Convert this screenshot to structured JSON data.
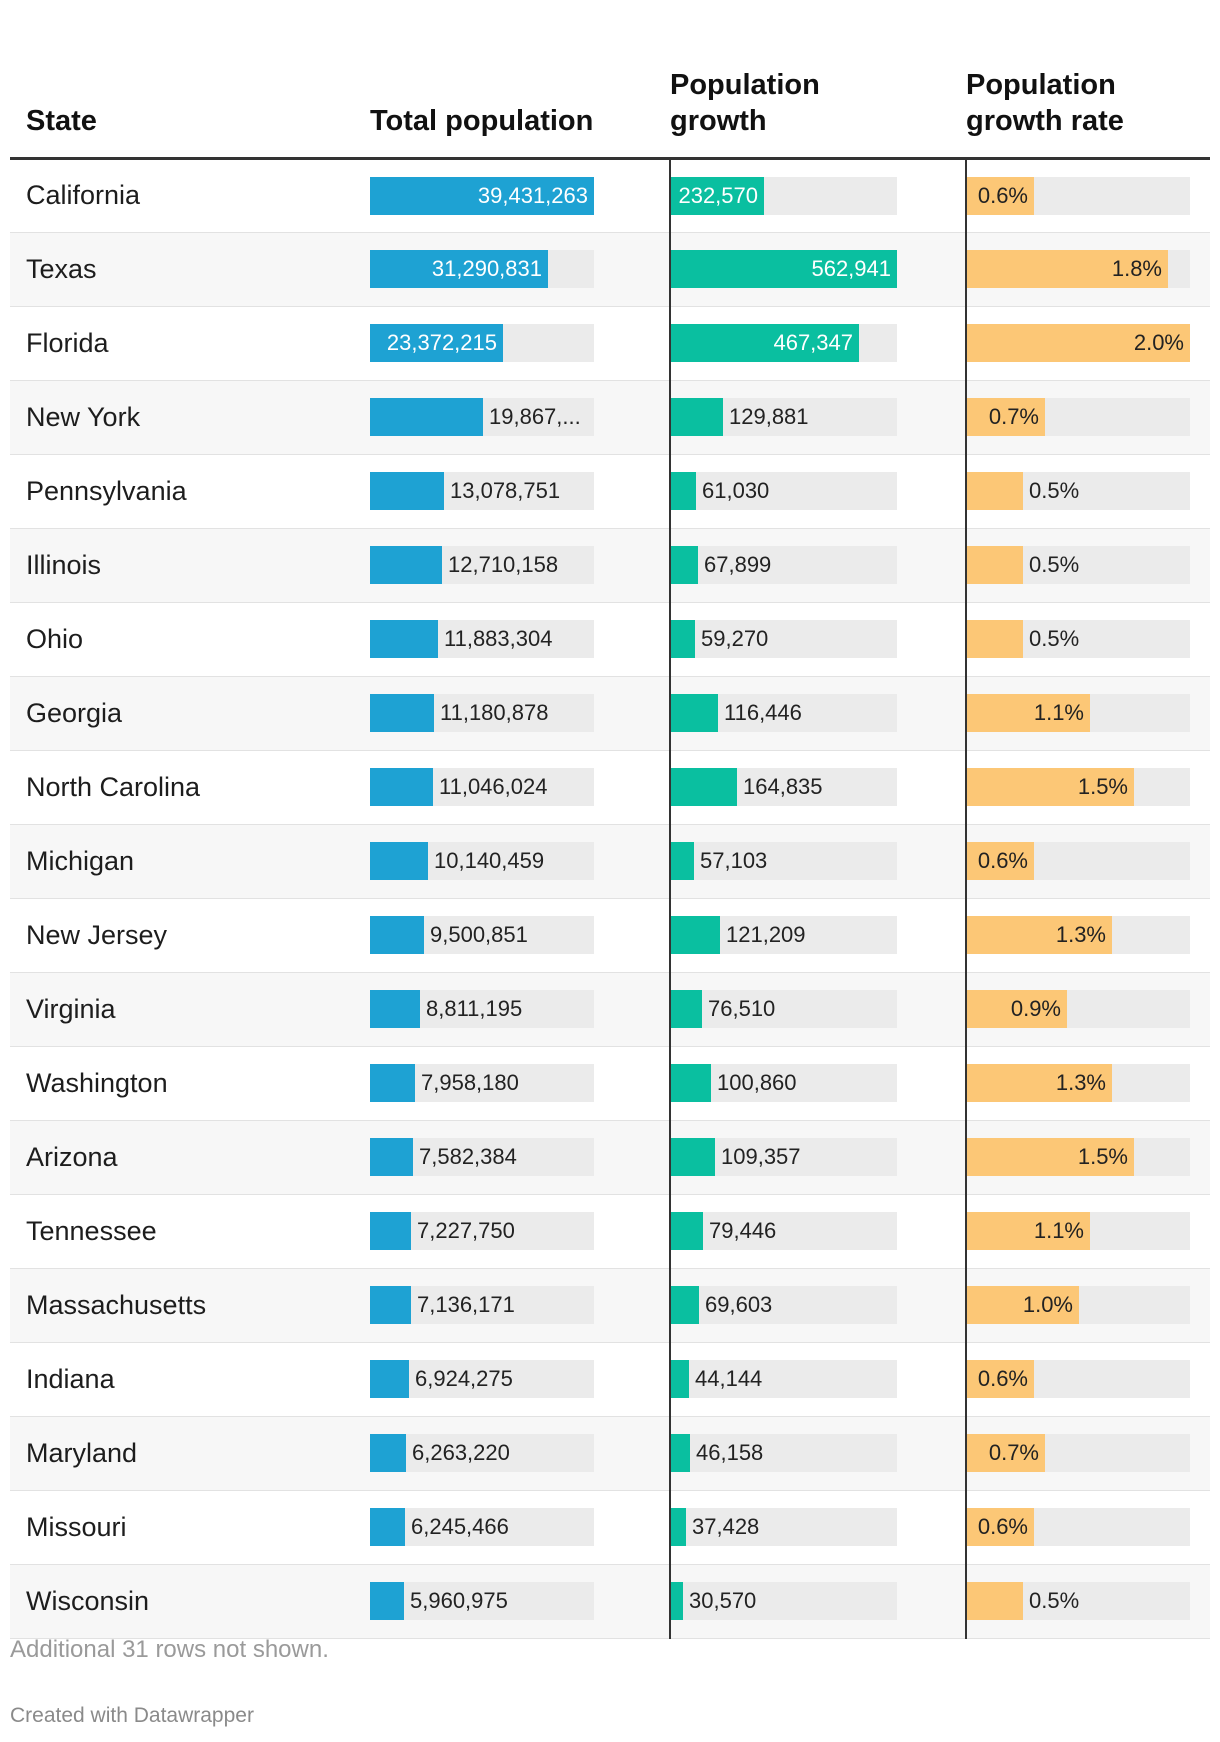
{
  "chart_data": {
    "type": "table",
    "columns": [
      "State",
      "Total population",
      "Population growth",
      "Population growth rate"
    ],
    "column_headers": [
      {
        "line1": "State",
        "line2": ""
      },
      {
        "line1": "Total population",
        "line2": ""
      },
      {
        "line1": "Population",
        "line2": "growth"
      },
      {
        "line1": "Population",
        "line2": "growth rate"
      }
    ],
    "column_max": {
      "total": 39431263,
      "growth": 562941,
      "rate": 2.0
    },
    "colors": {
      "total": "#1ea2d3",
      "growth": "#0abfa0",
      "rate": "#fcc776",
      "track": "#ebebeb"
    },
    "rows": [
      {
        "state": "California",
        "total": 39431263,
        "total_label": "39,431,263",
        "growth": 232570,
        "growth_label": "232,570",
        "rate": 0.6,
        "rate_label": "0.6%"
      },
      {
        "state": "Texas",
        "total": 31290831,
        "total_label": "31,290,831",
        "growth": 562941,
        "growth_label": "562,941",
        "rate": 1.8,
        "rate_label": "1.8%"
      },
      {
        "state": "Florida",
        "total": 23372215,
        "total_label": "23,372,215",
        "growth": 467347,
        "growth_label": "467,347",
        "rate": 2.0,
        "rate_label": "2.0%"
      },
      {
        "state": "New York",
        "total": 19867248,
        "total_label": "19,867,...",
        "growth": 129881,
        "growth_label": "129,881",
        "rate": 0.7,
        "rate_label": "0.7%"
      },
      {
        "state": "Pennsylvania",
        "total": 13078751,
        "total_label": "13,078,751",
        "growth": 61030,
        "growth_label": "61,030",
        "rate": 0.5,
        "rate_label": "0.5%"
      },
      {
        "state": "Illinois",
        "total": 12710158,
        "total_label": "12,710,158",
        "growth": 67899,
        "growth_label": "67,899",
        "rate": 0.5,
        "rate_label": "0.5%"
      },
      {
        "state": "Ohio",
        "total": 11883304,
        "total_label": "11,883,304",
        "growth": 59270,
        "growth_label": "59,270",
        "rate": 0.5,
        "rate_label": "0.5%"
      },
      {
        "state": "Georgia",
        "total": 11180878,
        "total_label": "11,180,878",
        "growth": 116446,
        "growth_label": "116,446",
        "rate": 1.1,
        "rate_label": "1.1%"
      },
      {
        "state": "North Carolina",
        "total": 11046024,
        "total_label": "11,046,024",
        "growth": 164835,
        "growth_label": "164,835",
        "rate": 1.5,
        "rate_label": "1.5%"
      },
      {
        "state": "Michigan",
        "total": 10140459,
        "total_label": "10,140,459",
        "growth": 57103,
        "growth_label": "57,103",
        "rate": 0.6,
        "rate_label": "0.6%"
      },
      {
        "state": "New Jersey",
        "total": 9500851,
        "total_label": "9,500,851",
        "growth": 121209,
        "growth_label": "121,209",
        "rate": 1.3,
        "rate_label": "1.3%"
      },
      {
        "state": "Virginia",
        "total": 8811195,
        "total_label": "8,811,195",
        "growth": 76510,
        "growth_label": "76,510",
        "rate": 0.9,
        "rate_label": "0.9%"
      },
      {
        "state": "Washington",
        "total": 7958180,
        "total_label": "7,958,180",
        "growth": 100860,
        "growth_label": "100,860",
        "rate": 1.3,
        "rate_label": "1.3%"
      },
      {
        "state": "Arizona",
        "total": 7582384,
        "total_label": "7,582,384",
        "growth": 109357,
        "growth_label": "109,357",
        "rate": 1.5,
        "rate_label": "1.5%"
      },
      {
        "state": "Tennessee",
        "total": 7227750,
        "total_label": "7,227,750",
        "growth": 79446,
        "growth_label": "79,446",
        "rate": 1.1,
        "rate_label": "1.1%"
      },
      {
        "state": "Massachusetts",
        "total": 7136171,
        "total_label": "7,136,171",
        "growth": 69603,
        "growth_label": "69,603",
        "rate": 1.0,
        "rate_label": "1.0%"
      },
      {
        "state": "Indiana",
        "total": 6924275,
        "total_label": "6,924,275",
        "growth": 44144,
        "growth_label": "44,144",
        "rate": 0.6,
        "rate_label": "0.6%"
      },
      {
        "state": "Maryland",
        "total": 6263220,
        "total_label": "6,263,220",
        "growth": 46158,
        "growth_label": "46,158",
        "rate": 0.7,
        "rate_label": "0.7%"
      },
      {
        "state": "Missouri",
        "total": 6245466,
        "total_label": "6,245,466",
        "growth": 37428,
        "growth_label": "37,428",
        "rate": 0.6,
        "rate_label": "0.6%"
      },
      {
        "state": "Wisconsin",
        "total": 5960975,
        "total_label": "5,960,975",
        "growth": 30570,
        "growth_label": "30,570",
        "rate": 0.5,
        "rate_label": "0.5%"
      }
    ]
  },
  "footer": {
    "note": "Additional 31 rows not shown.",
    "credit": "Created with Datawrapper"
  }
}
